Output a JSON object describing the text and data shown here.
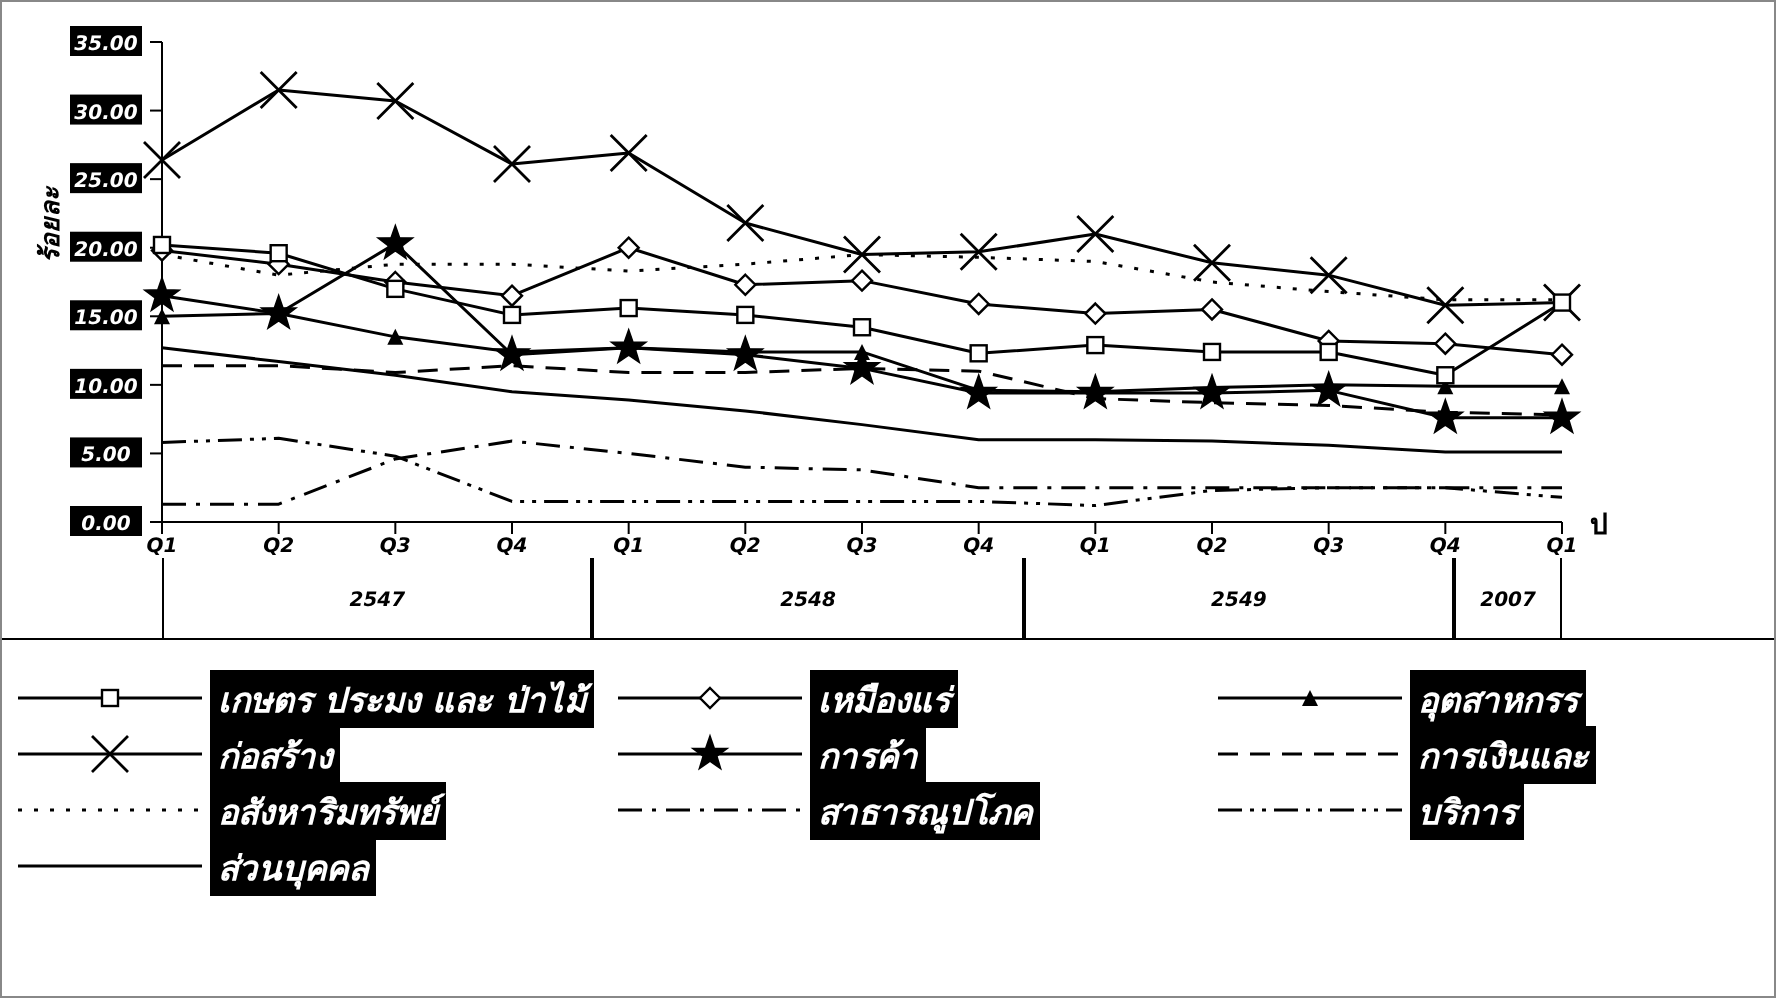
{
  "chart_data": {
    "type": "line",
    "ylabel": "ร้อยละ",
    "xlabel": "ป",
    "categories": [
      "Q1",
      "Q2",
      "Q3",
      "Q4",
      "Q1",
      "Q2",
      "Q3",
      "Q4",
      "Q1",
      "Q2",
      "Q3",
      "Q4",
      "Q1"
    ],
    "annotations": [
      "2547",
      "2548",
      "2549",
      "2007"
    ],
    "ylim": [
      0,
      35
    ],
    "yticks": [
      {
        "value": 0,
        "label": "0.00"
      },
      {
        "value": 5,
        "label": "5.00"
      },
      {
        "value": 10,
        "label": "10.00"
      },
      {
        "value": 15,
        "label": "15.00"
      },
      {
        "value": 20,
        "label": "20.00"
      },
      {
        "value": 25,
        "label": "25.00"
      },
      {
        "value": 30,
        "label": "30.00"
      },
      {
        "value": 35,
        "label": "35.00"
      }
    ],
    "grid": false,
    "legend": "bottom",
    "series": [
      {
        "name": "เกษตร ประมง และ ป่าไม้",
        "color": "#000000",
        "marker": "square",
        "line_style": "solid",
        "values": [
          20.2,
          19.6,
          17.0,
          15.1,
          15.6,
          15.1,
          14.2,
          12.3,
          12.9,
          12.4,
          12.4,
          10.7,
          16.0
        ]
      },
      {
        "name": "เหมืองแร่",
        "color": "#000000",
        "marker": "diamond",
        "line_style": "solid",
        "values": [
          19.8,
          18.8,
          17.5,
          16.5,
          20.0,
          17.3,
          17.6,
          15.9,
          15.2,
          15.5,
          13.2,
          13.0,
          12.2
        ]
      },
      {
        "name": "อุตสาหกรร",
        "color": "#000000",
        "marker": "triangle",
        "line_style": "solid",
        "values": [
          15.0,
          15.2,
          13.5,
          12.4,
          12.7,
          12.4,
          12.4,
          9.6,
          9.5,
          9.8,
          10.0,
          9.9,
          9.9
        ]
      },
      {
        "name": "ก่อสร้าง",
        "color": "#000000",
        "marker": "cross",
        "line_style": "solid",
        "values": [
          26.4,
          31.5,
          30.7,
          26.1,
          26.9,
          21.8,
          19.5,
          19.7,
          21.0,
          18.9,
          18.0,
          15.8,
          16.0
        ]
      },
      {
        "name": "การค้า",
        "color": "#000000",
        "marker": "star",
        "line_style": "solid",
        "values": [
          16.5,
          15.2,
          20.3,
          12.2,
          12.7,
          12.2,
          11.2,
          9.4,
          9.4,
          9.4,
          9.6,
          7.6,
          7.6
        ]
      },
      {
        "name": "การเงินและ",
        "color": "#000000",
        "marker": "none",
        "line_style": "dashed",
        "values": [
          11.4,
          11.4,
          10.9,
          11.4,
          10.9,
          10.9,
          11.2,
          11.0,
          9.0,
          8.7,
          8.5,
          8.0,
          7.8
        ]
      },
      {
        "name": "อสังหาริมทรัพย์",
        "color": "#000000",
        "marker": "none",
        "line_style": "dotted",
        "values": [
          19.5,
          18.0,
          18.8,
          18.8,
          18.3,
          18.8,
          19.5,
          19.3,
          19.0,
          17.5,
          16.8,
          16.2,
          16.2
        ]
      },
      {
        "name": "สาธารณูปโภค",
        "color": "#000000",
        "marker": "none",
        "line_style": "dashdot",
        "values": [
          1.3,
          1.3,
          4.6,
          5.9,
          5.0,
          4.0,
          3.8,
          2.5,
          2.5,
          2.5,
          2.5,
          2.5,
          2.5
        ]
      },
      {
        "name": "บริการ",
        "color": "#000000",
        "marker": "none",
        "line_style": "dashdotdot",
        "values": [
          5.8,
          6.1,
          4.8,
          1.5,
          1.5,
          1.5,
          1.5,
          1.5,
          1.2,
          2.3,
          2.5,
          2.5,
          1.8
        ]
      },
      {
        "name": "ส่วนบุคคล",
        "color": "#000000",
        "marker": "none",
        "line_style": "solid",
        "values": [
          12.7,
          11.7,
          10.7,
          9.5,
          8.9,
          8.1,
          7.1,
          6.0,
          6.0,
          5.9,
          5.6,
          5.1,
          5.1
        ]
      }
    ]
  }
}
